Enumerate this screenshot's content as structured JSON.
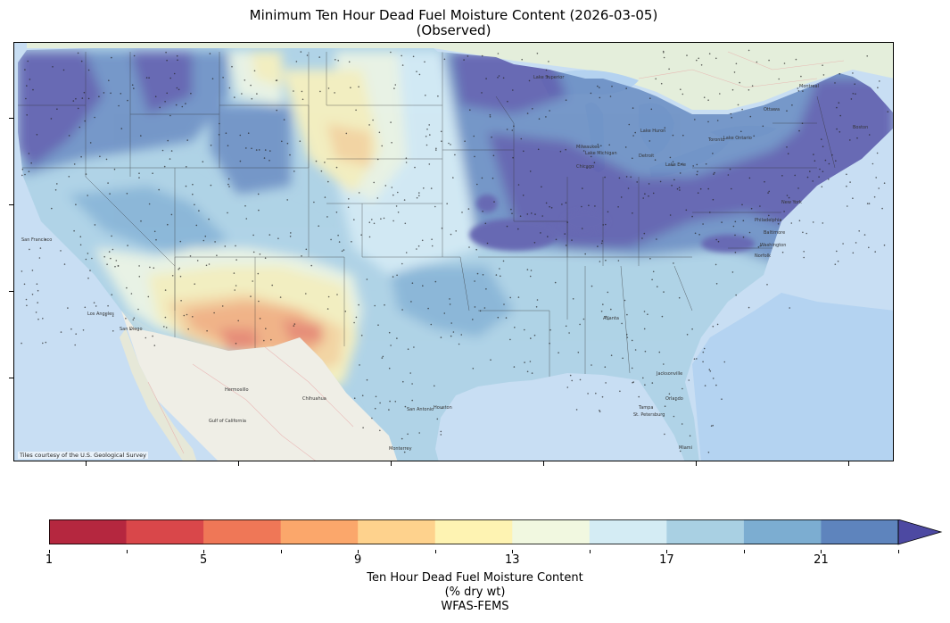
{
  "title": {
    "line1": "Minimum Ten Hour Dead Fuel Moisture Content (2026-03-05)",
    "line2": "(Observed)"
  },
  "map": {
    "attribution": "Tiles courtesy of the U.S. Geological Survey",
    "colors": {
      "ocean": "#b9d6f2",
      "land_base": "#e9efe0",
      "mexico": "#efeee6",
      "canada": "#e4eedb",
      "great_lakes": "#b4d2f0"
    },
    "places": [
      "Lake Superior",
      "Lake Michigan",
      "Lake Huron",
      "Lake Erie",
      "Lake Ontario",
      "Milwaukee",
      "Chicago",
      "Detroit",
      "Toronto",
      "Montreal",
      "Ottawa",
      "Boston",
      "New York",
      "Philadelphia",
      "Baltimore",
      "Washington",
      "Norfolk",
      "Atlanta",
      "Jacksonville",
      "Orlando",
      "Tampa",
      "St. Petersburg",
      "Miami",
      "Houston",
      "San Antonio",
      "Chihuahua",
      "Hermosillo",
      "Gulf of California",
      "Los Angeles",
      "San Diego",
      "San Francisco",
      "Monterrey"
    ]
  },
  "colorbar": {
    "title_line1": "Ten Hour Dead Fuel Moisture Content",
    "title_line2": "(% dry wt)",
    "title_line3": "WFAS-FEMS",
    "min": 1,
    "max": 24,
    "extend": "max",
    "boundaries": [
      1,
      3,
      5,
      7,
      9,
      11,
      13,
      15,
      17,
      19,
      21,
      23
    ],
    "tick_labels": [
      1,
      5,
      9,
      13,
      17,
      21
    ],
    "colors": [
      "#b5273f",
      "#d9474a",
      "#ef7757",
      "#fba76b",
      "#fed28d",
      "#fef3b2",
      "#f1f8e0",
      "#d4ecf4",
      "#a9d0e3",
      "#7cadd1",
      "#5e84bd",
      "#4d49a2"
    ]
  }
}
